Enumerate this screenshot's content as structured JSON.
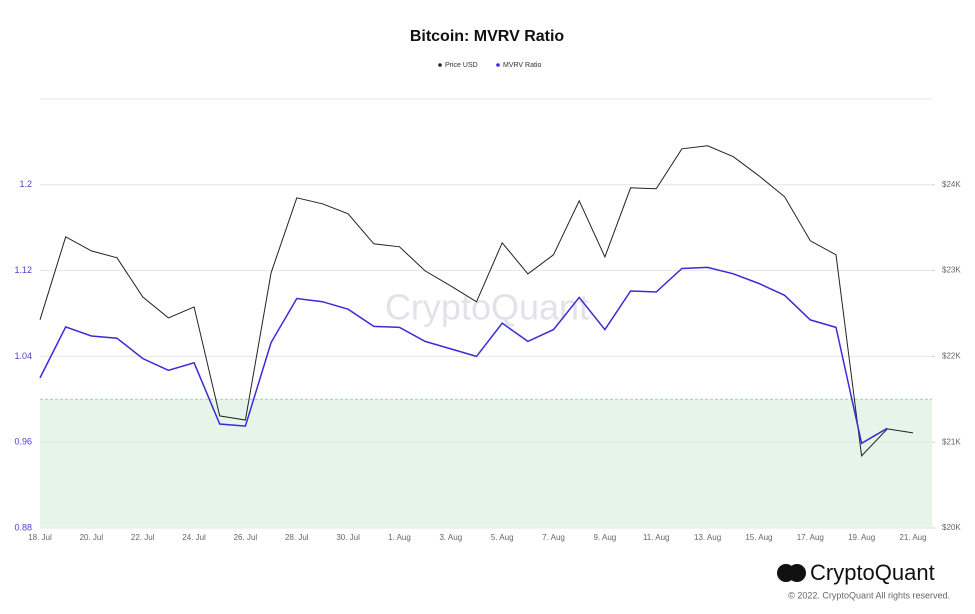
{
  "chart_data": {
    "type": "line",
    "title": "Bitcoin: MVRV Ratio",
    "watermark": "CryptoQuant",
    "brand": "CryptoQuant",
    "copyright": "© 2022. CryptoQuant All rights reserved.",
    "categories": [
      "18. Jul",
      null,
      "20. Jul",
      null,
      "22. Jul",
      null,
      "24. Jul",
      null,
      "26. Jul",
      null,
      "28. Jul",
      null,
      "30. Jul",
      null,
      "1. Aug",
      null,
      "3. Aug",
      null,
      "5. Aug",
      null,
      "7. Aug",
      null,
      "9. Aug",
      null,
      "11. Aug",
      null,
      "13. Aug",
      null,
      "15. Aug",
      null,
      "17. Aug",
      null,
      "19. Aug",
      null,
      "21. Aug"
    ],
    "series": [
      {
        "name": "Price USD",
        "color": "#222222",
        "axis": "y2",
        "values": [
          22426,
          23394,
          23230,
          23149,
          22694,
          22449,
          22577,
          21306,
          21259,
          22974,
          23848,
          23778,
          23662,
          23312,
          23277,
          22997,
          22822,
          22636,
          23324,
          22962,
          23184,
          23813,
          23160,
          23965,
          23953,
          24420,
          24455,
          24327,
          24105,
          23860,
          23347,
          23184,
          20840,
          21155,
          21108
        ]
      },
      {
        "name": "MVRV Ratio",
        "color": "#3b2bd6",
        "values": [
          1.02,
          1.0675,
          1.059,
          1.057,
          1.038,
          1.027,
          1.034,
          0.977,
          0.975,
          1.053,
          1.094,
          1.091,
          1.084,
          1.068,
          1.067,
          1.054,
          1.047,
          1.04,
          1.071,
          1.054,
          1.065,
          1.095,
          1.065,
          1.101,
          1.1,
          1.122,
          1.123,
          1.117,
          1.108,
          1.097,
          1.074,
          1.067,
          0.959,
          0.973,
          null
        ]
      }
    ],
    "ylim": [
      0.88,
      1.28
    ],
    "yticks": [
      0.88,
      0.96,
      1.04,
      1.12,
      1.2
    ],
    "y2lim": [
      20000,
      25000
    ],
    "y2ticks": [
      {
        "value": 20000,
        "label": "$20K"
      },
      {
        "value": 21000,
        "label": "$21K"
      },
      {
        "value": 22000,
        "label": "$22K"
      },
      {
        "value": 23000,
        "label": "$23K"
      },
      {
        "value": 24000,
        "label": "$24K"
      }
    ],
    "highlight_band": {
      "from": 0.88,
      "to": 1,
      "color": "#e6f5ea"
    },
    "grid": true,
    "legend": "top"
  }
}
